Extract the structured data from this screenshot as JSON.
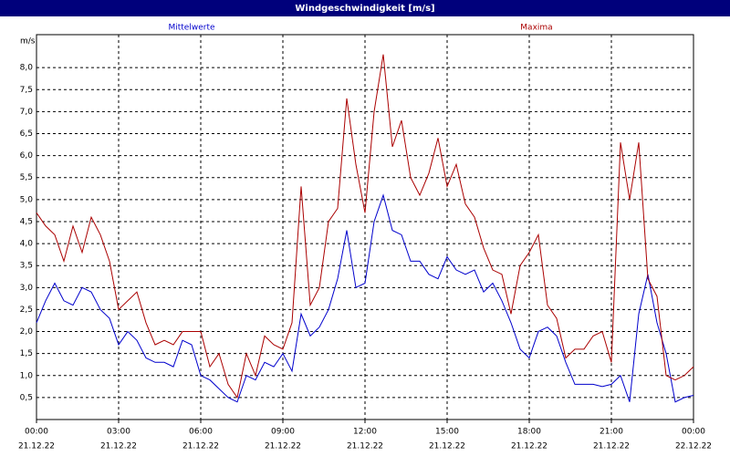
{
  "chart_data": {
    "type": "line",
    "title": "Windgeschwindigkeit [m/s]",
    "y_label": "m/s",
    "x": [
      0,
      20,
      40,
      60,
      80,
      100,
      120,
      140,
      160,
      180,
      200,
      220,
      240,
      260,
      280,
      300,
      320,
      340,
      360,
      380,
      400,
      420,
      440,
      460,
      480,
      500,
      520,
      540,
      560,
      580,
      600,
      620,
      640,
      660,
      680,
      700,
      720,
      740,
      760,
      780,
      800,
      820,
      840,
      860,
      880,
      900,
      920,
      940,
      960,
      980,
      1000,
      1020,
      1040,
      1060,
      1080,
      1100,
      1120,
      1140,
      1160,
      1180,
      1200,
      1220,
      1240,
      1260,
      1280,
      1300,
      1320,
      1340,
      1360,
      1380,
      1400,
      1420,
      1440
    ],
    "series": [
      {
        "name": "Mittelwerte",
        "color": "#0000cc",
        "values": [
          2.2,
          2.7,
          3.1,
          2.7,
          2.6,
          3.0,
          2.9,
          2.5,
          2.3,
          1.7,
          2.0,
          1.8,
          1.4,
          1.3,
          1.3,
          1.2,
          1.8,
          1.7,
          1.0,
          0.9,
          0.7,
          0.5,
          0.4,
          1.0,
          0.9,
          1.3,
          1.2,
          1.5,
          1.1,
          2.4,
          1.9,
          2.1,
          2.5,
          3.2,
          4.3,
          3.0,
          3.1,
          4.5,
          5.1,
          4.3,
          4.2,
          3.6,
          3.6,
          3.3,
          3.2,
          3.7,
          3.4,
          3.3,
          3.4,
          2.9,
          3.1,
          2.7,
          2.2,
          1.6,
          1.4,
          2.0,
          2.1,
          1.9,
          1.3,
          0.8,
          0.8,
          0.8,
          0.75,
          0.8,
          1.0,
          0.4,
          2.4,
          3.3,
          2.2,
          1.5,
          0.4,
          0.5,
          0.55
        ]
      },
      {
        "name": "Maxima",
        "color": "#aa0000",
        "values": [
          4.7,
          4.4,
          4.2,
          3.6,
          4.4,
          3.8,
          4.6,
          4.2,
          3.6,
          2.5,
          2.7,
          2.9,
          2.2,
          1.7,
          1.8,
          1.7,
          2.0,
          2.0,
          2.0,
          1.2,
          1.5,
          0.8,
          0.5,
          1.5,
          1.0,
          1.9,
          1.7,
          1.6,
          2.2,
          5.3,
          2.6,
          3.0,
          4.5,
          4.8,
          7.3,
          5.8,
          4.7,
          7.0,
          8.3,
          6.2,
          6.8,
          5.5,
          5.1,
          5.6,
          6.4,
          5.3,
          5.8,
          4.9,
          4.6,
          3.9,
          3.4,
          3.3,
          2.4,
          3.5,
          3.8,
          4.2,
          2.6,
          2.3,
          1.4,
          1.6,
          1.6,
          1.9,
          2.0,
          1.3,
          6.3,
          5.0,
          6.3,
          3.2,
          2.8,
          1.0,
          0.9,
          1.0,
          1.2
        ]
      }
    ],
    "xlim": [
      0,
      1440
    ],
    "xticks": [
      {
        "value": 0,
        "label": "00:00"
      },
      {
        "value": 180,
        "label": "03:00"
      },
      {
        "value": 360,
        "label": "06:00"
      },
      {
        "value": 540,
        "label": "09:00"
      },
      {
        "value": 720,
        "label": "12:00"
      },
      {
        "value": 900,
        "label": "15:00"
      },
      {
        "value": 1080,
        "label": "18:00"
      },
      {
        "value": 1260,
        "label": "21:00"
      },
      {
        "value": 1440,
        "label": "00:00"
      }
    ],
    "xtick_dates": [
      "21.12.22",
      "21.12.22",
      "21.12.22",
      "21.12.22",
      "21.12.22",
      "21.12.22",
      "21.12.22",
      "21.12.22",
      "22.12.22"
    ],
    "ylim": [
      0,
      8.75
    ],
    "yticks": [
      {
        "value": 0.5,
        "label": "0,5"
      },
      {
        "value": 1.0,
        "label": "1,0"
      },
      {
        "value": 1.5,
        "label": "1,5"
      },
      {
        "value": 2.0,
        "label": "2,0"
      },
      {
        "value": 2.5,
        "label": "2,5"
      },
      {
        "value": 3.0,
        "label": "3,0"
      },
      {
        "value": 3.5,
        "label": "3,5"
      },
      {
        "value": 4.0,
        "label": "4,0"
      },
      {
        "value": 4.5,
        "label": "4,5"
      },
      {
        "value": 5.0,
        "label": "5,0"
      },
      {
        "value": 5.5,
        "label": "5,5"
      },
      {
        "value": 6.0,
        "label": "6,0"
      },
      {
        "value": 6.5,
        "label": "6,5"
      },
      {
        "value": 7.0,
        "label": "7,0"
      },
      {
        "value": 7.5,
        "label": "7,5"
      },
      {
        "value": 8.0,
        "label": "8,0"
      }
    ],
    "grid": true
  }
}
